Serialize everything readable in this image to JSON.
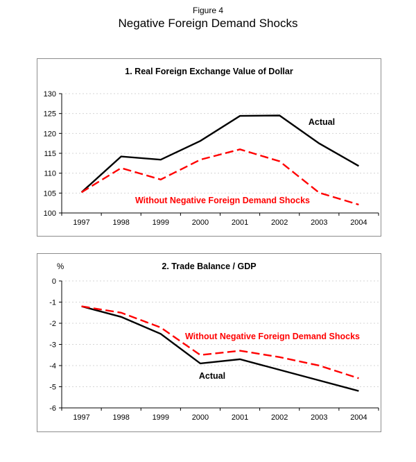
{
  "figure": {
    "label": "Figure 4",
    "title": "Negative Foreign Demand Shocks"
  },
  "colors": {
    "actual": "#000000",
    "counterfactual": "#ff0000",
    "grid": "#d4d4d4",
    "axis": "#000000",
    "panel_border": "#8c8c8c"
  },
  "chart_data": [
    {
      "type": "line",
      "title": "1. Real Foreign Exchange Value of Dollar",
      "xlabel": "",
      "ylabel": "",
      "categories": [
        "1997",
        "1998",
        "1999",
        "2000",
        "2001",
        "2002",
        "2003",
        "2004"
      ],
      "series": [
        {
          "name": "Actual",
          "style": "solid",
          "color_key": "actual",
          "values": [
            105.2,
            114.2,
            113.4,
            118.1,
            124.4,
            124.5,
            117.5,
            111.8
          ]
        },
        {
          "name": "Without Negative Foreign Demand Shocks",
          "style": "dashed",
          "color_key": "counterfactual",
          "values": [
            105.2,
            111.3,
            108.4,
            113.4,
            116.0,
            113.0,
            105.1,
            102.1
          ]
        }
      ],
      "ylim": [
        100,
        130
      ],
      "yticks": [
        100,
        105,
        110,
        115,
        120,
        125,
        130
      ],
      "grid": "dotted-horizontal",
      "legend": "in-plot-annotations",
      "annotations": [
        {
          "text": "Actual",
          "series": 0
        },
        {
          "text": "Without Negative Foreign Demand Shocks",
          "series": 1
        }
      ]
    },
    {
      "type": "line",
      "title": "2. Trade Balance / GDP",
      "xlabel": "",
      "ylabel": "%",
      "categories": [
        "1997",
        "1998",
        "1999",
        "2000",
        "2001",
        "2002",
        "2003",
        "2004"
      ],
      "series": [
        {
          "name": "Actual",
          "style": "solid",
          "color_key": "actual",
          "values": [
            -1.2,
            -1.7,
            -2.5,
            -3.9,
            -3.7,
            -4.2,
            -4.7,
            -5.2
          ]
        },
        {
          "name": "Without Negative Foreign Demand Shocks",
          "style": "dashed",
          "color_key": "counterfactual",
          "values": [
            -1.2,
            -1.5,
            -2.2,
            -3.5,
            -3.3,
            -3.6,
            -4.0,
            -4.6
          ]
        }
      ],
      "ylim": [
        -6,
        0
      ],
      "yticks": [
        0,
        -1,
        -2,
        -3,
        -4,
        -5,
        -6
      ],
      "grid": "dotted-horizontal",
      "legend": "in-plot-annotations",
      "annotations": [
        {
          "text": "Actual",
          "series": 0
        },
        {
          "text": "Without Negative Foreign Demand Shocks",
          "series": 1
        }
      ]
    }
  ]
}
